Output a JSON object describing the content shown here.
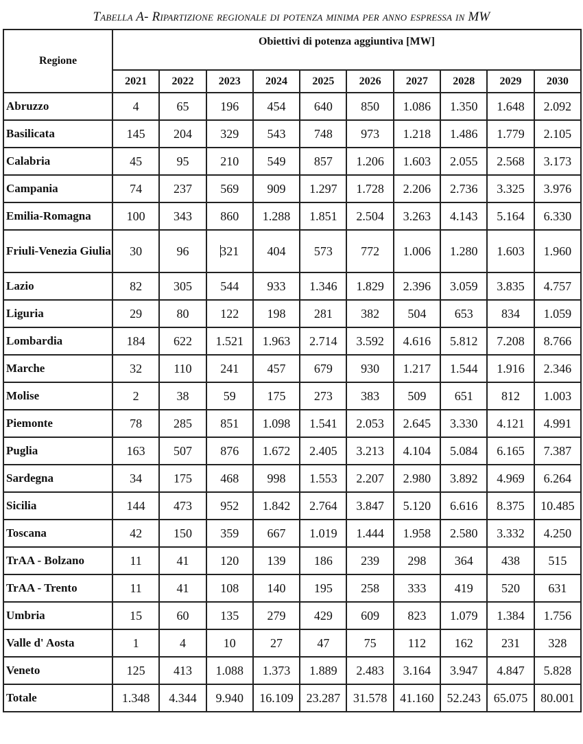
{
  "title": "Tabella A- Ripartizione regionale di potenza minima per anno espressa in MW",
  "header": {
    "region_label": "Regione",
    "group_label": "Obiettivi di potenza aggiuntiva [MW]",
    "years": [
      "2021",
      "2022",
      "2023",
      "2024",
      "2025",
      "2026",
      "2027",
      "2028",
      "2029",
      "2030"
    ]
  },
  "rows": [
    {
      "region": "Abruzzo",
      "values": [
        "4",
        "65",
        "196",
        "454",
        "640",
        "850",
        "1.086",
        "1.350",
        "1.648",
        "2.092"
      ]
    },
    {
      "region": "Basilicata",
      "values": [
        "145",
        "204",
        "329",
        "543",
        "748",
        "973",
        "1.218",
        "1.486",
        "1.779",
        "2.105"
      ]
    },
    {
      "region": "Calabria",
      "values": [
        "45",
        "95",
        "210",
        "549",
        "857",
        "1.206",
        "1.603",
        "2.055",
        "2.568",
        "3.173"
      ]
    },
    {
      "region": "Campania",
      "values": [
        "74",
        "237",
        "569",
        "909",
        "1.297",
        "1.728",
        "2.206",
        "2.736",
        "3.325",
        "3.976"
      ]
    },
    {
      "region": "Emilia-Romagna",
      "values": [
        "100",
        "343",
        "860",
        "1.288",
        "1.851",
        "2.504",
        "3.263",
        "4.143",
        "5.164",
        "6.330"
      ]
    },
    {
      "region": "Friuli-Venezia Giulia",
      "values": [
        "30",
        "96",
        "321",
        "404",
        "573",
        "772",
        "1.006",
        "1.280",
        "1.603",
        "1.960"
      ]
    },
    {
      "region": "Lazio",
      "values": [
        "82",
        "305",
        "544",
        "933",
        "1.346",
        "1.829",
        "2.396",
        "3.059",
        "3.835",
        "4.757"
      ]
    },
    {
      "region": "Liguria",
      "values": [
        "29",
        "80",
        "122",
        "198",
        "281",
        "382",
        "504",
        "653",
        "834",
        "1.059"
      ]
    },
    {
      "region": "Lombardia",
      "values": [
        "184",
        "622",
        "1.521",
        "1.963",
        "2.714",
        "3.592",
        "4.616",
        "5.812",
        "7.208",
        "8.766"
      ]
    },
    {
      "region": "Marche",
      "values": [
        "32",
        "110",
        "241",
        "457",
        "679",
        "930",
        "1.217",
        "1.544",
        "1.916",
        "2.346"
      ]
    },
    {
      "region": "Molise",
      "values": [
        "2",
        "38",
        "59",
        "175",
        "273",
        "383",
        "509",
        "651",
        "812",
        "1.003"
      ]
    },
    {
      "region": "Piemonte",
      "values": [
        "78",
        "285",
        "851",
        "1.098",
        "1.541",
        "2.053",
        "2.645",
        "3.330",
        "4.121",
        "4.991"
      ]
    },
    {
      "region": "Puglia",
      "values": [
        "163",
        "507",
        "876",
        "1.672",
        "2.405",
        "3.213",
        "4.104",
        "5.084",
        "6.165",
        "7.387"
      ]
    },
    {
      "region": "Sardegna",
      "values": [
        "34",
        "175",
        "468",
        "998",
        "1.553",
        "2.207",
        "2.980",
        "3.892",
        "4.969",
        "6.264"
      ]
    },
    {
      "region": "Sicilia",
      "values": [
        "144",
        "473",
        "952",
        "1.842",
        "2.764",
        "3.847",
        "5.120",
        "6.616",
        "8.375",
        "10.485"
      ]
    },
    {
      "region": "Toscana",
      "values": [
        "42",
        "150",
        "359",
        "667",
        "1.019",
        "1.444",
        "1.958",
        "2.580",
        "3.332",
        "4.250"
      ]
    },
    {
      "region": "TrAA - Bolzano",
      "values": [
        "11",
        "41",
        "120",
        "139",
        "186",
        "239",
        "298",
        "364",
        "438",
        "515"
      ]
    },
    {
      "region": "TrAA - Trento",
      "values": [
        "11",
        "41",
        "108",
        "140",
        "195",
        "258",
        "333",
        "419",
        "520",
        "631"
      ]
    },
    {
      "region": "Umbria",
      "values": [
        "15",
        "60",
        "135",
        "279",
        "429",
        "609",
        "823",
        "1.079",
        "1.384",
        "1.756"
      ]
    },
    {
      "region": "Valle d' Aosta",
      "values": [
        "1",
        "4",
        "10",
        "27",
        "47",
        "75",
        "112",
        "162",
        "231",
        "328"
      ]
    },
    {
      "region": "Veneto",
      "values": [
        "125",
        "413",
        "1.088",
        "1.373",
        "1.889",
        "2.483",
        "3.164",
        "3.947",
        "4.847",
        "5.828"
      ]
    },
    {
      "region": "Totale",
      "values": [
        "1.348",
        "4.344",
        "9.940",
        "16.109",
        "23.287",
        "31.578",
        "41.160",
        "52.243",
        "65.075",
        "80.001"
      ]
    }
  ]
}
